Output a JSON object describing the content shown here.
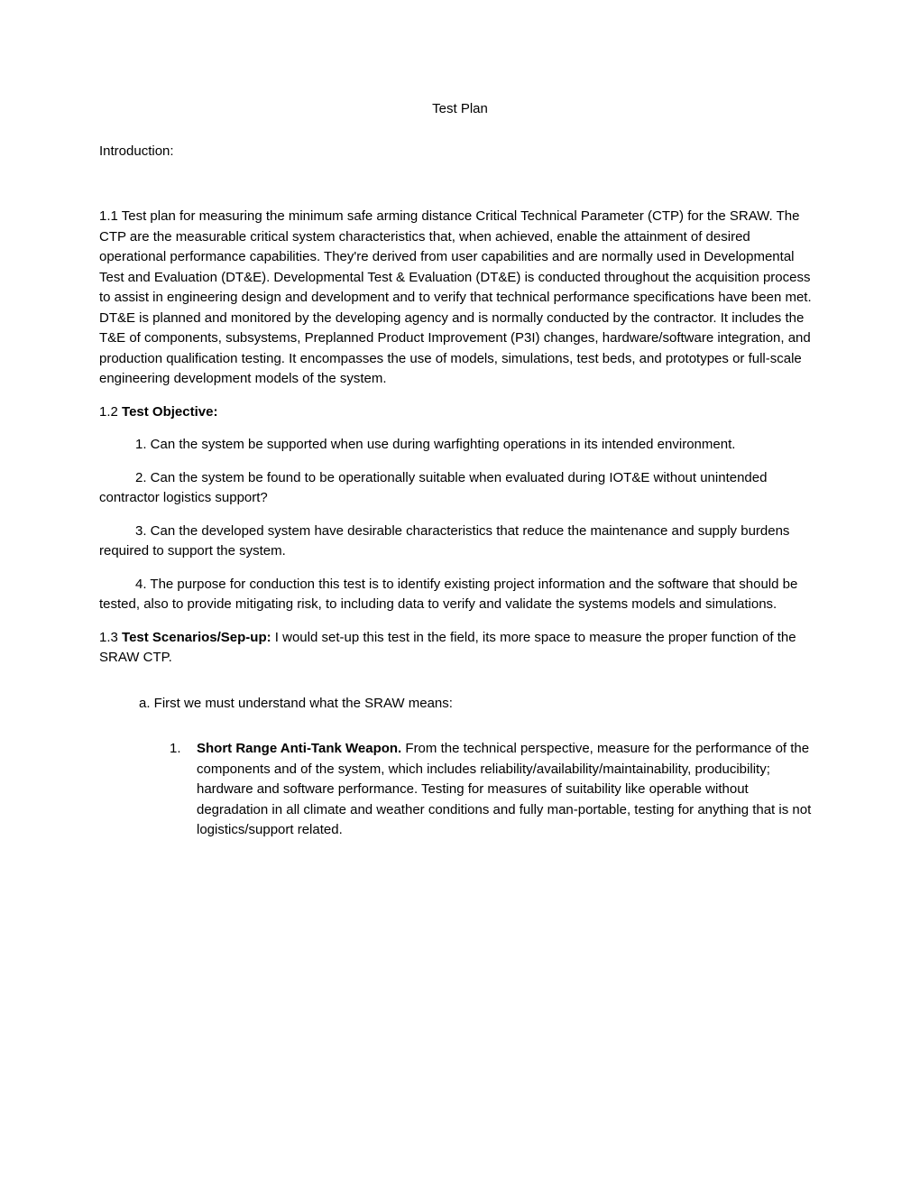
{
  "title": "Test Plan",
  "intro_label": "Introduction:",
  "section_1_1": "1.1 Test plan for measuring the minimum safe arming distance Critical Technical Parameter (CTP) for the SRAW.  The CTP are the measurable critical system characteristics that, when achieved, enable the attainment of desired operational performance capabilities. They're derived from user capabilities and are normally used in Developmental Test and Evaluation (DT&E). Developmental Test & Evaluation (DT&E) is conducted throughout the acquisition process to assist in engineering design and development and to verify that technical performance specifications have been met. DT&E is planned and monitored by the developing agency and is normally conducted by the contractor. It includes the T&E of components, subsystems, Preplanned Product Improvement (P3I) changes, hardware/software integration, and production qualification testing. It encompasses the use of models, simulations, test beds, and prototypes or full-scale engineering development models of the system.",
  "section_1_2_prefix": "1.2 ",
  "section_1_2_heading": "Test Objective:",
  "objective_1": "1.  Can the system be supported when use during warfighting operations in its intended environment.",
  "objective_2": "2.  Can the system be found to be operationally suitable when evaluated during IOT&E without unintended contractor logistics support?",
  "objective_3": "3.  Can the developed system have desirable characteristics that reduce the maintenance and supply burdens required to support the system.",
  "objective_4": "4. The purpose for conduction this test is to identify existing project information and the software that should be tested, also to provide mitigating risk, to including data to verify and validate the systems models and simulations.",
  "section_1_3_prefix": "1.3 ",
  "section_1_3_heading": "Test Scenarios/Sep-up:",
  "section_1_3_text": "  I would set-up this test in the field, its more space to measure the proper function of the SRAW CTP.",
  "item_a": "a.   First we must understand what the SRAW means:",
  "sub_1_num": "1.",
  "sub_1_heading": "Short Range Anti-Tank Weapon.",
  "sub_1_text": "   From the technical perspective, measure for the performance of the components and of the system, which includes reliability/availability/maintainability, producibility; hardware and software performance. Testing for measures of suitability like operable without degradation in all climate and weather conditions and fully man-portable, testing for anything that is not logistics/support related.",
  "colors": {
    "background": "#ffffff",
    "text": "#000000"
  },
  "typography": {
    "font_family": "Arial",
    "font_size": 15,
    "line_height": 1.5
  }
}
